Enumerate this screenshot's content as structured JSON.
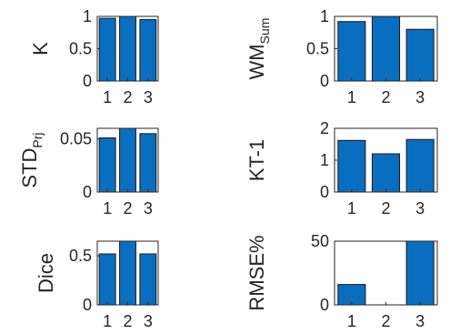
{
  "chart_data": [
    {
      "type": "bar",
      "categories": [
        "1",
        "2",
        "3"
      ],
      "values": [
        0.97,
        1.0,
        0.95
      ],
      "ylabel": "K",
      "ylabel_sub": "",
      "ylim": [
        0,
        1
      ],
      "yticks": [
        "0",
        "0.5",
        "1"
      ],
      "ytick_values": [
        0,
        0.5,
        1
      ],
      "color": "#0a6ec0"
    },
    {
      "type": "bar",
      "categories": [
        "1",
        "2",
        "3"
      ],
      "values": [
        0.92,
        1.0,
        0.8
      ],
      "ylabel": "WM",
      "ylabel_sub": "Sum",
      "ylim": [
        0,
        1
      ],
      "yticks": [
        "0",
        "0.5",
        "1"
      ],
      "ytick_values": [
        0,
        0.5,
        1
      ],
      "color": "#0a6ec0"
    },
    {
      "type": "bar",
      "categories": [
        "1",
        "2",
        "3"
      ],
      "values": [
        0.051,
        0.06,
        0.055
      ],
      "ylabel": "STD",
      "ylabel_sub": "Prj",
      "ylim": [
        0,
        0.06
      ],
      "yticks": [
        "0",
        "0.05"
      ],
      "ytick_values": [
        0,
        0.05
      ],
      "color": "#0a6ec0"
    },
    {
      "type": "bar",
      "categories": [
        "1",
        "2",
        "3"
      ],
      "values": [
        1.62,
        1.2,
        1.65
      ],
      "ylabel": "KT-1",
      "ylabel_sub": "",
      "ylim": [
        0,
        2
      ],
      "yticks": [
        "0",
        "1",
        "2"
      ],
      "ytick_values": [
        0,
        1,
        2
      ],
      "color": "#0a6ec0"
    },
    {
      "type": "bar",
      "categories": [
        "1",
        "2",
        "3"
      ],
      "values": [
        0.52,
        0.65,
        0.52
      ],
      "ylabel": "Dice",
      "ylabel_sub": "",
      "ylim": [
        0,
        0.65
      ],
      "yticks": [
        "0",
        "0.5"
      ],
      "ytick_values": [
        0,
        0.5
      ],
      "color": "#0a6ec0"
    },
    {
      "type": "bar",
      "categories": [
        "1",
        "2",
        "3"
      ],
      "values": [
        16,
        0,
        50
      ],
      "ylabel": "RMSE%",
      "ylabel_sub": "",
      "ylim": [
        0,
        50
      ],
      "yticks": [
        "0",
        "50"
      ],
      "ytick_values": [
        0,
        50
      ],
      "color": "#0a6ec0"
    }
  ]
}
